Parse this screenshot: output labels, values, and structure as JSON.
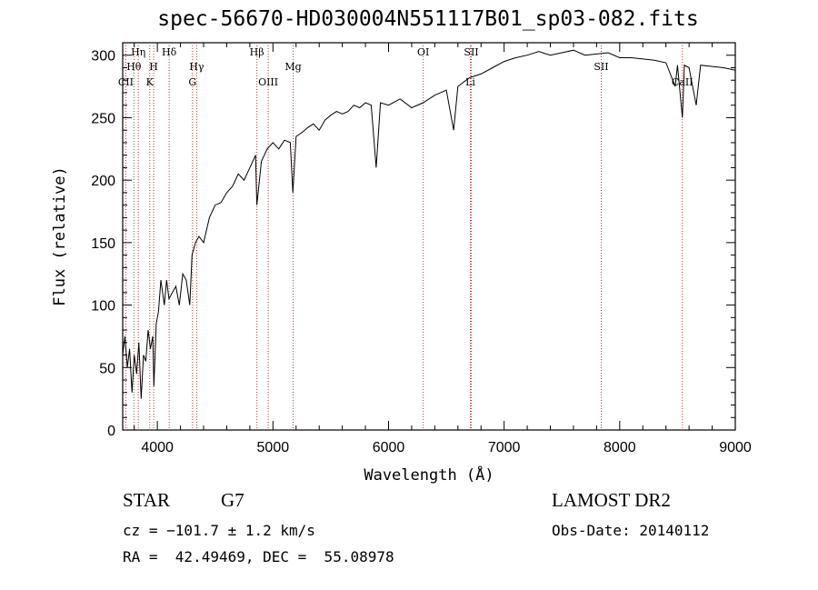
{
  "chart_data": {
    "type": "line",
    "title": "spec-56670-HD030004N551117B01_sp03-082.fits",
    "xlabel": "Wavelength (Å)",
    "ylabel": "Flux (relative)",
    "xlim": [
      3700,
      9000
    ],
    "ylim": [
      0,
      310
    ],
    "x_ticks": [
      4000,
      5000,
      6000,
      7000,
      8000,
      9000
    ],
    "y_ticks": [
      0,
      50,
      100,
      150,
      200,
      250,
      300
    ],
    "grid": false,
    "series": [
      {
        "points": [
          [
            3700,
            60
          ],
          [
            3720,
            75
          ],
          [
            3740,
            50
          ],
          [
            3760,
            65
          ],
          [
            3780,
            30
          ],
          [
            3800,
            60
          ],
          [
            3820,
            45
          ],
          [
            3840,
            70
          ],
          [
            3860,
            25
          ],
          [
            3880,
            60
          ],
          [
            3900,
            55
          ],
          [
            3920,
            80
          ],
          [
            3940,
            65
          ],
          [
            3960,
            75
          ],
          [
            3970,
            35
          ],
          [
            3990,
            85
          ],
          [
            4010,
            95
          ],
          [
            4030,
            120
          ],
          [
            4060,
            100
          ],
          [
            4080,
            120
          ],
          [
            4100,
            105
          ],
          [
            4130,
            110
          ],
          [
            4160,
            115
          ],
          [
            4190,
            100
          ],
          [
            4220,
            125
          ],
          [
            4250,
            120
          ],
          [
            4280,
            100
          ],
          [
            4300,
            140
          ],
          [
            4330,
            150
          ],
          [
            4360,
            155
          ],
          [
            4400,
            150
          ],
          [
            4450,
            170
          ],
          [
            4500,
            180
          ],
          [
            4550,
            182
          ],
          [
            4600,
            190
          ],
          [
            4650,
            195
          ],
          [
            4700,
            205
          ],
          [
            4750,
            200
          ],
          [
            4800,
            210
          ],
          [
            4850,
            220
          ],
          [
            4861,
            180
          ],
          [
            4900,
            215
          ],
          [
            4950,
            225
          ],
          [
            5000,
            230
          ],
          [
            5050,
            225
          ],
          [
            5100,
            232
          ],
          [
            5150,
            230
          ],
          [
            5172,
            190
          ],
          [
            5200,
            235
          ],
          [
            5250,
            238
          ],
          [
            5300,
            242
          ],
          [
            5350,
            245
          ],
          [
            5400,
            240
          ],
          [
            5450,
            248
          ],
          [
            5500,
            252
          ],
          [
            5550,
            255
          ],
          [
            5600,
            253
          ],
          [
            5650,
            255
          ],
          [
            5700,
            260
          ],
          [
            5750,
            258
          ],
          [
            5800,
            262
          ],
          [
            5850,
            260
          ],
          [
            5893,
            210
          ],
          [
            5930,
            262
          ],
          [
            6000,
            260
          ],
          [
            6100,
            265
          ],
          [
            6200,
            258
          ],
          [
            6300,
            262
          ],
          [
            6400,
            268
          ],
          [
            6500,
            272
          ],
          [
            6563,
            240
          ],
          [
            6600,
            275
          ],
          [
            6700,
            282
          ],
          [
            6800,
            285
          ],
          [
            6900,
            290
          ],
          [
            7000,
            295
          ],
          [
            7100,
            298
          ],
          [
            7200,
            300
          ],
          [
            7300,
            303
          ],
          [
            7400,
            300
          ],
          [
            7500,
            302
          ],
          [
            7600,
            304
          ],
          [
            7700,
            300
          ],
          [
            7800,
            301
          ],
          [
            7900,
            302
          ],
          [
            8000,
            298
          ],
          [
            8100,
            298
          ],
          [
            8200,
            297
          ],
          [
            8300,
            296
          ],
          [
            8400,
            294
          ],
          [
            8480,
            275
          ],
          [
            8500,
            292
          ],
          [
            8542,
            250
          ],
          [
            8560,
            292
          ],
          [
            8600,
            290
          ],
          [
            8662,
            260
          ],
          [
            8700,
            292
          ],
          [
            8800,
            291
          ],
          [
            8900,
            290
          ],
          [
            9000,
            288
          ]
        ]
      }
    ],
    "spectral_lines": [
      {
        "label": "Hη",
        "wavelength": 3835,
        "row": 1
      },
      {
        "label": "Hθ",
        "wavelength": 3797,
        "row": 2
      },
      {
        "label": "CII",
        "wavelength": 3727,
        "row": 3
      },
      {
        "label": "H",
        "wavelength": 3968,
        "row": 2
      },
      {
        "label": "K",
        "wavelength": 3934,
        "row": 3
      },
      {
        "label": "Hδ",
        "wavelength": 4102,
        "row": 1
      },
      {
        "label": "Hγ",
        "wavelength": 4340,
        "row": 2
      },
      {
        "label": "G",
        "wavelength": 4304,
        "row": 3
      },
      {
        "label": "Hβ",
        "wavelength": 4861,
        "row": 1
      },
      {
        "label": "OIII",
        "wavelength": 4959,
        "row": 3
      },
      {
        "label": "Mg",
        "wavelength": 5175,
        "row": 2
      },
      {
        "label": "OI",
        "wavelength": 6300,
        "row": 1
      },
      {
        "label": "SII",
        "wavelength": 6716,
        "row": 1
      },
      {
        "label": "Li",
        "wavelength": 6708,
        "row": 3
      },
      {
        "label": "SII",
        "wavelength": 7840,
        "row": 2
      },
      {
        "label": "CaII",
        "wavelength": 8542,
        "row": 3
      }
    ],
    "line_color": "#000000",
    "marker_color": "#c0392b"
  },
  "info": {
    "object_class": "STAR",
    "subclass": "G7",
    "survey": "LAMOST DR2",
    "cz": "cz = −101.7 ± 1.2 km/s",
    "obs_date": "Obs-Date: 20140112",
    "coords": "RA =  42.49469, DEC =  55.08978"
  }
}
